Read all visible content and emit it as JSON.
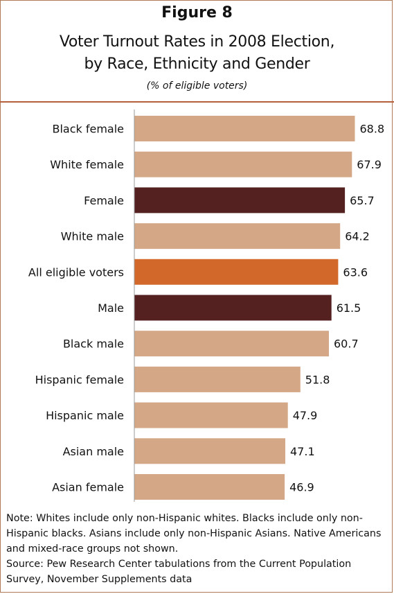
{
  "figure_label": "Figure 8",
  "title_lines": [
    "Voter Turnout Rates in 2008 Election,",
    "by Race, Ethnicity and Gender"
  ],
  "subtitle": "(% of eligible voters)",
  "chart_data": {
    "type": "bar",
    "orientation": "horizontal",
    "title": "Voter Turnout Rates in 2008 Election, by Race, Ethnicity and Gender",
    "subtitle": "(% of eligible voters)",
    "categories": [
      "Black female",
      "White female",
      "Female",
      "White male",
      "All eligible voters",
      "Male",
      "Black male",
      "Hispanic female",
      "Hispanic male",
      "Asian male",
      "Asian female"
    ],
    "values": [
      68.8,
      67.9,
      65.7,
      64.2,
      63.6,
      61.5,
      60.7,
      51.8,
      47.9,
      47.1,
      46.9
    ],
    "value_labels": [
      "68.8",
      "67.9",
      "65.7",
      "64.2",
      "63.6",
      "61.5",
      "60.7",
      "51.8",
      "47.9",
      "47.1",
      "46.9"
    ],
    "bar_colors": [
      "#d4a886",
      "#d4a886",
      "#542020",
      "#d4a886",
      "#d2692a",
      "#542020",
      "#d4a886",
      "#d4a886",
      "#d4a886",
      "#d4a886",
      "#d4a886"
    ],
    "xlim": [
      0,
      70
    ],
    "grid": false,
    "legend": "none",
    "data_labels": "outside-end"
  },
  "colors": {
    "default_bar": "#d4a886",
    "gender_total_bar": "#542020",
    "all_voters_bar": "#d2692a",
    "border": "#b5603a"
  },
  "notes": [
    "Note: Whites include only non-Hispanic whites.  Blacks include only non-Hispanic blacks. Asians include only non-Hispanic Asians. Native Americans and mixed-race groups not shown.",
    "Source: Pew Research Center tabulations from the Current Population Survey, November Supplements data"
  ]
}
